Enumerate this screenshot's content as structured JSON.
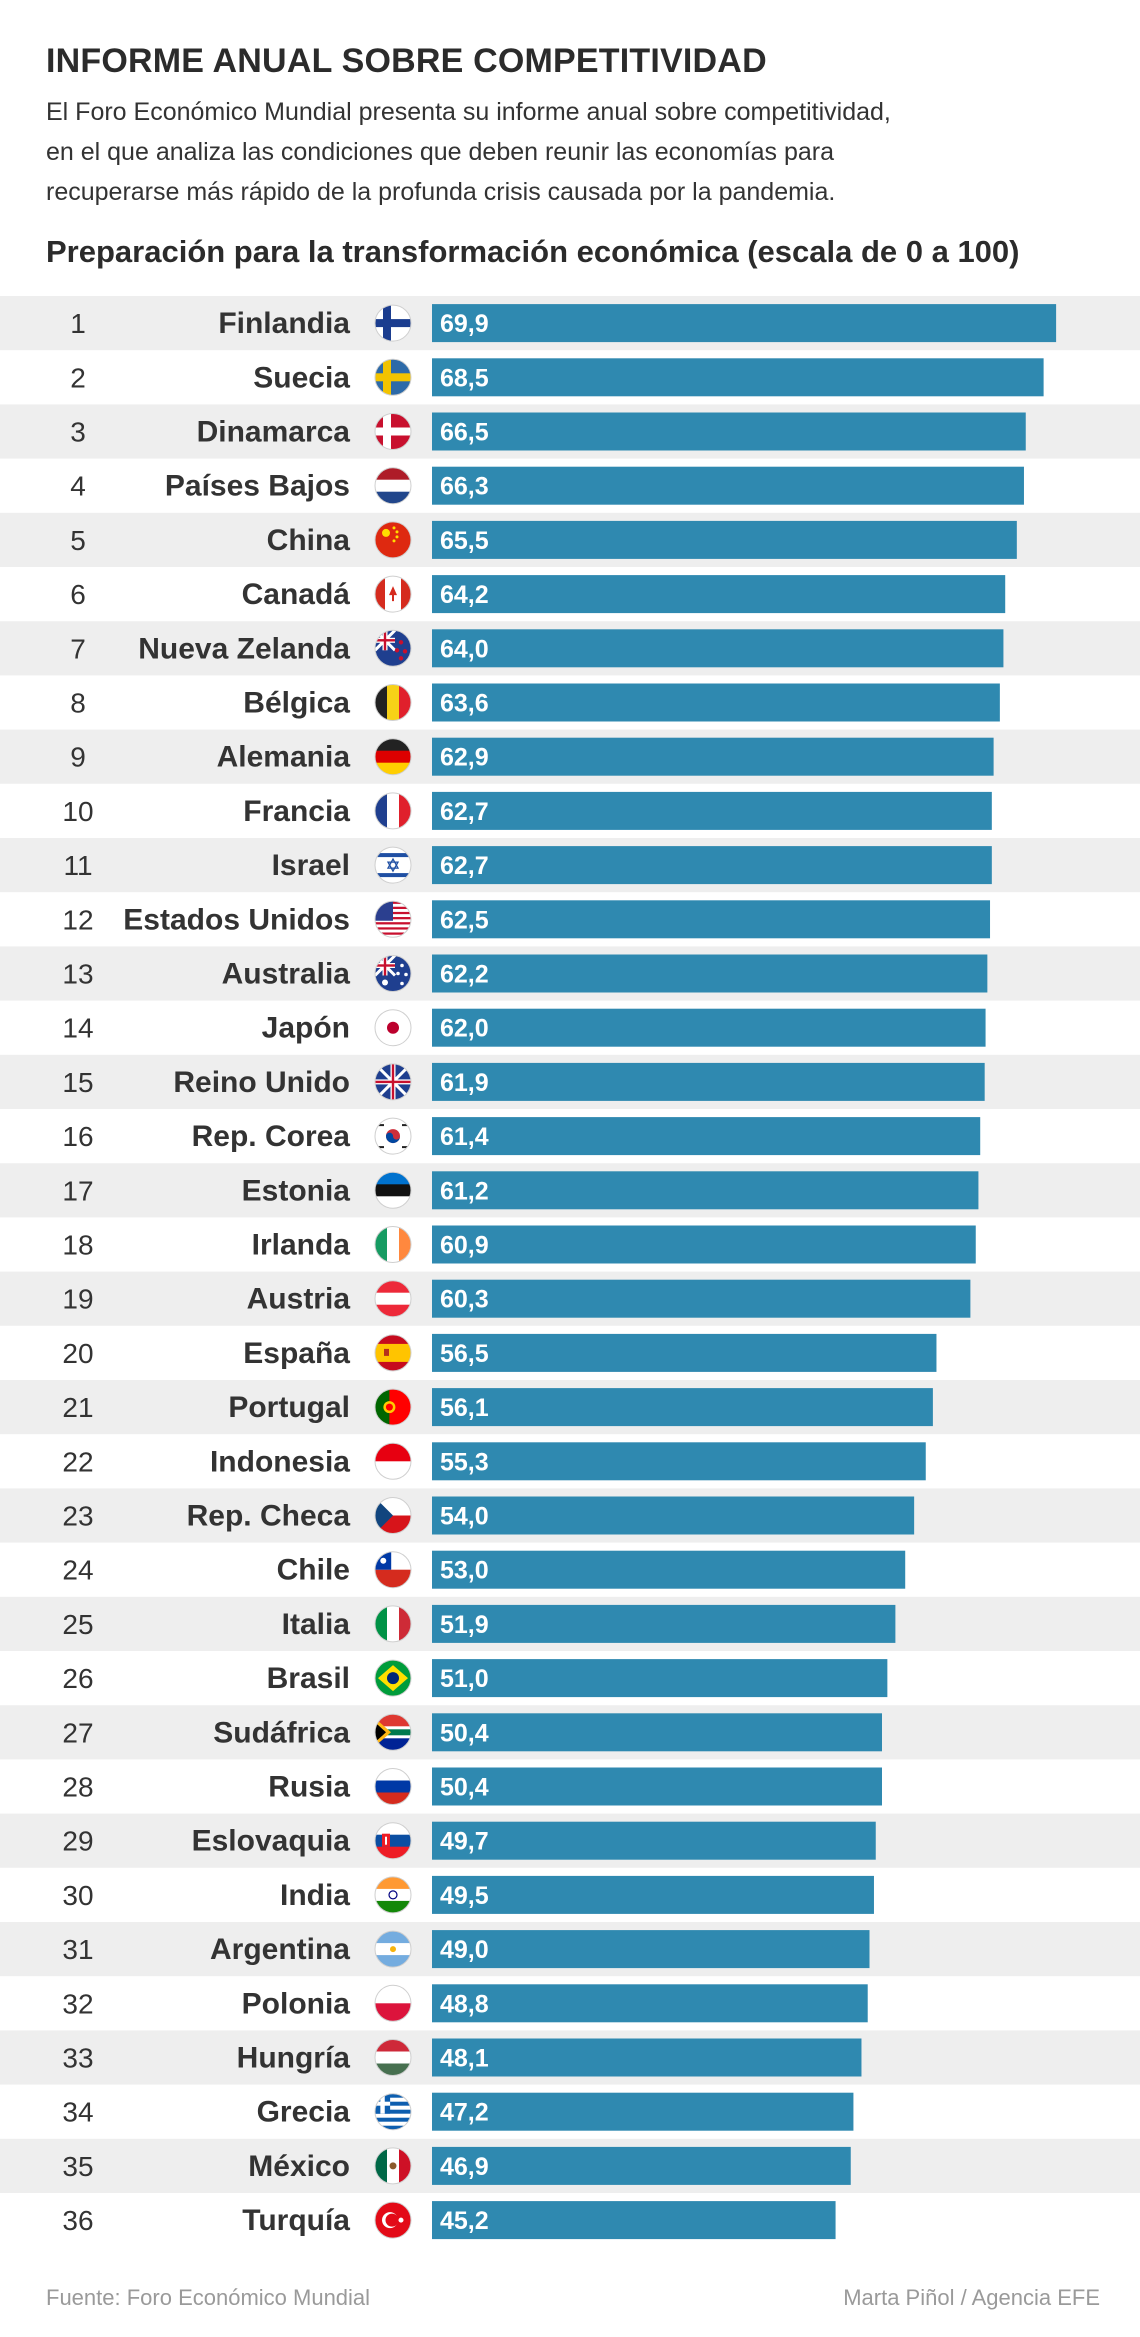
{
  "header": {
    "title": "INFORME ANUAL SOBRE COMPETITIVIDAD",
    "lines": [
      "El Foro Económico Mundial presenta su informe anual sobre competitividad,",
      "en el que analiza las condiciones que deben reunir las economías para",
      "recuperarse más rápido de la profunda crisis causada por la pandemia."
    ]
  },
  "footer": {
    "source": "Fuente: Foro Económico Mundial",
    "credit": "Marta Piñol / Agencia EFE"
  },
  "colors": {
    "bar": "#2f89b0",
    "stripe": "#eeeeee",
    "label": "#333333"
  },
  "chart_data": {
    "type": "bar",
    "orientation": "horizontal",
    "title": "Preparación para la transformación económica (escala de 0 a 100)",
    "xlim": [
      0,
      70
    ],
    "ranks": [
      "1",
      "2",
      "3",
      "4",
      "5",
      "6",
      "7",
      "8",
      "9",
      "10",
      "11",
      "12",
      "13",
      "14",
      "15",
      "16",
      "17",
      "18",
      "19",
      "20",
      "21",
      "22",
      "23",
      "24",
      "25",
      "26",
      "27",
      "28",
      "29",
      "30",
      "31",
      "32",
      "33",
      "34",
      "35",
      "36"
    ],
    "categories": [
      "Finlandia",
      "Suecia",
      "Dinamarca",
      "Países Bajos",
      "China",
      "Canadá",
      "Nueva Zelanda",
      "Bélgica",
      "Alemania",
      "Francia",
      "Israel",
      "Estados Unidos",
      "Australia",
      "Japón",
      "Reino Unido",
      "Rep. Corea",
      "Estonia",
      "Irlanda",
      "Austria",
      "España",
      "Portugal",
      "Indonesia",
      "Rep. Checa",
      "Chile",
      "Italia",
      "Brasil",
      "Sudáfrica",
      "Rusia",
      "Eslovaquia",
      "India",
      "Argentina",
      "Polonia",
      "Hungría",
      "Grecia",
      "México",
      "Turquía"
    ],
    "values": [
      69.9,
      68.5,
      66.5,
      66.3,
      65.5,
      64.2,
      64.0,
      63.6,
      62.9,
      62.7,
      62.7,
      62.5,
      62.2,
      62.0,
      61.9,
      61.4,
      61.2,
      60.9,
      60.3,
      56.5,
      56.1,
      55.3,
      54.0,
      53.0,
      51.9,
      51.0,
      50.4,
      50.4,
      49.7,
      49.5,
      49.0,
      48.8,
      48.1,
      47.2,
      46.9,
      45.2
    ],
    "labels": [
      "69,9",
      "68,5",
      "66,5",
      "66,3",
      "65,5",
      "64,2",
      "64,0",
      "63,6",
      "62,9",
      "62,7",
      "62,7",
      "62,5",
      "62,2",
      "62,0",
      "61,9",
      "61,4",
      "61,2",
      "60,9",
      "60,3",
      "56,5",
      "56,1",
      "55,3",
      "54,0",
      "53,0",
      "51,9",
      "51,0",
      "50,4",
      "50,4",
      "49,7",
      "49,5",
      "49,0",
      "48,8",
      "48,1",
      "47,2",
      "46,9",
      "45,2"
    ],
    "flags": [
      "fi-flag-icon",
      "se-flag-icon",
      "dk-flag-icon",
      "nl-flag-icon",
      "cn-flag-icon",
      "ca-flag-icon",
      "nz-flag-icon",
      "be-flag-icon",
      "de-flag-icon",
      "fr-flag-icon",
      "il-flag-icon",
      "us-flag-icon",
      "au-flag-icon",
      "jp-flag-icon",
      "gb-flag-icon",
      "kr-flag-icon",
      "ee-flag-icon",
      "ie-flag-icon",
      "at-flag-icon",
      "es-flag-icon",
      "pt-flag-icon",
      "id-flag-icon",
      "cz-flag-icon",
      "cl-flag-icon",
      "it-flag-icon",
      "br-flag-icon",
      "za-flag-icon",
      "ru-flag-icon",
      "sk-flag-icon",
      "in-flag-icon",
      "ar-flag-icon",
      "pl-flag-icon",
      "hu-flag-icon",
      "gr-flag-icon",
      "mx-flag-icon",
      "tr-flag-icon"
    ]
  }
}
